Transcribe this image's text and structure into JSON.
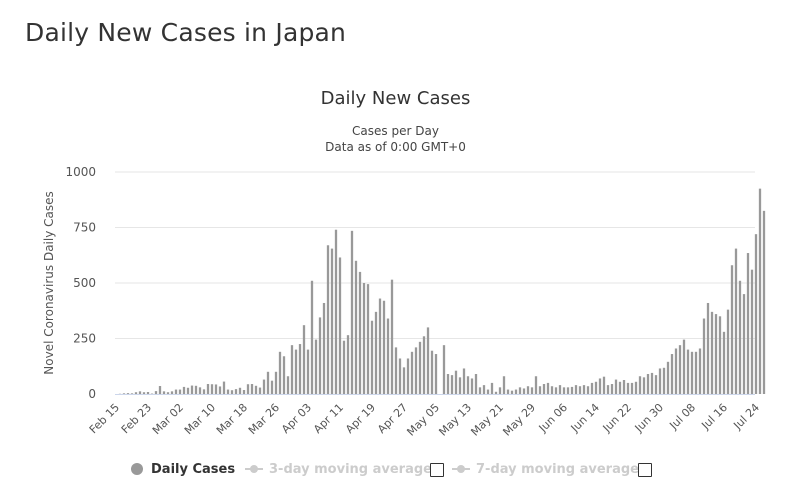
{
  "page": {
    "title": "Daily New Cases in Japan"
  },
  "chart_data": {
    "type": "bar",
    "title": "Daily New Cases",
    "subtitle_lines": [
      "Cases per Day",
      "Data as of 0:00 GMT+0"
    ],
    "ylabel": "Novel Coronavirus Daily Cases",
    "xlabel": "",
    "ylim": [
      0,
      1000
    ],
    "y_ticks": [
      0,
      250,
      500,
      750,
      1000
    ],
    "y_tick_labels": [
      "0",
      "250",
      "500",
      "750",
      "1000"
    ],
    "x_tick_labels": [
      "Feb 15",
      "Feb 23",
      "Mar 02",
      "Mar 10",
      "Mar 18",
      "Mar 26",
      "Apr 03",
      "Apr 11",
      "Apr 19",
      "Apr 27",
      "May 05",
      "May 13",
      "May 21",
      "May 29",
      "Jun 06",
      "Jun 14",
      "Jun 22",
      "Jun 30",
      "Jul 08",
      "Jul 16",
      "Jul 24"
    ],
    "grid": true,
    "legend_position": "bottom",
    "series": [
      {
        "name": "Daily Cases",
        "color": "#999999",
        "start_date": "Feb 15",
        "values": [
          0,
          1,
          3,
          4,
          3,
          8,
          12,
          8,
          9,
          2,
          13,
          36,
          12,
          8,
          12,
          20,
          20,
          32,
          28,
          38,
          37,
          30,
          21,
          45,
          44,
          43,
          34,
          56,
          20,
          17,
          22,
          28,
          18,
          44,
          45,
          37,
          29,
          65,
          100,
          60,
          100,
          190,
          170,
          80,
          220,
          200,
          225,
          310,
          200,
          510,
          245,
          345,
          410,
          670,
          655,
          740,
          615,
          240,
          265,
          735,
          600,
          550,
          500,
          495,
          330,
          370,
          430,
          420,
          340,
          515,
          210,
          160,
          120,
          160,
          190,
          210,
          235,
          260,
          300,
          195,
          180,
          0,
          220,
          90,
          85,
          105,
          75,
          115,
          80,
          70,
          90,
          30,
          40,
          20,
          50,
          10,
          30,
          80,
          20,
          15,
          20,
          30,
          25,
          35,
          30,
          80,
          35,
          45,
          50,
          35,
          30,
          40,
          30,
          30,
          32,
          40,
          35,
          40,
          35,
          50,
          55,
          70,
          78,
          40,
          45,
          65,
          55,
          63,
          50,
          50,
          55,
          80,
          75,
          90,
          95,
          85,
          115,
          118,
          145,
          180,
          205,
          220,
          245,
          200,
          190,
          190,
          205,
          340,
          410,
          370,
          360,
          350,
          280,
          380,
          580,
          655,
          510,
          450,
          635,
          560,
          720,
          925,
          825
        ]
      }
    ]
  },
  "legend": {
    "items": [
      {
        "label": "Daily Cases",
        "active": true
      },
      {
        "label": "3-day moving average",
        "active": false
      },
      {
        "label": "7-day moving average",
        "active": false
      }
    ]
  }
}
